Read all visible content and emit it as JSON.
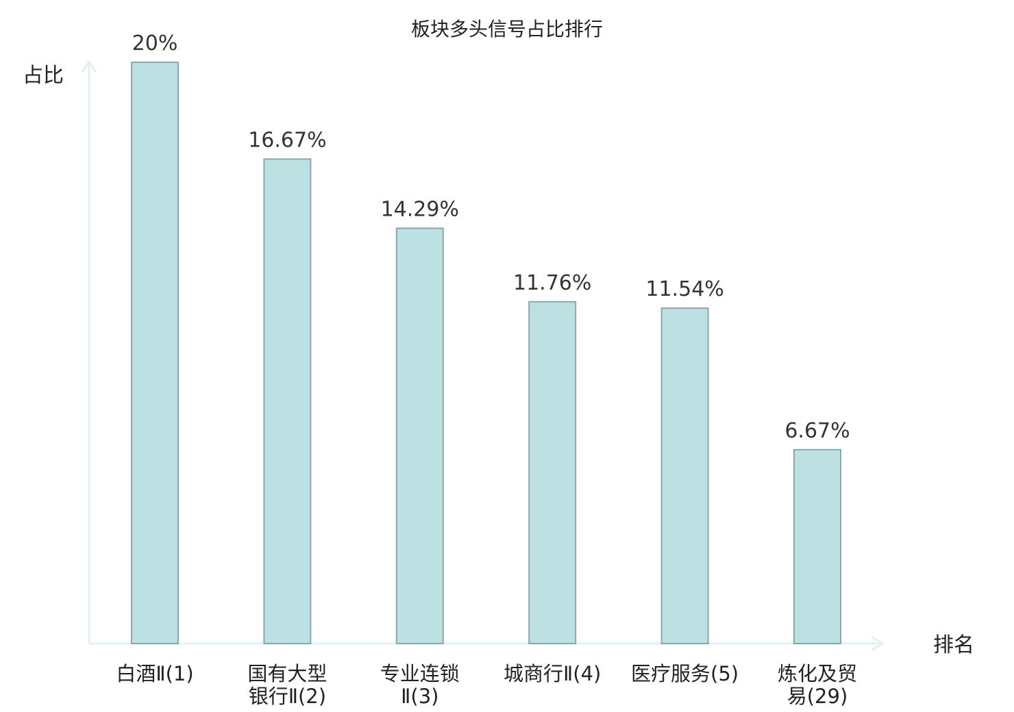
{
  "chart_data": {
    "type": "bar",
    "title": "板块多头信号占比排行",
    "ylabel": "占比",
    "xlabel": "排名",
    "ylim": [
      0,
      20
    ],
    "grid": false,
    "legend": "none",
    "categories": [
      {
        "lines": [
          "白酒Ⅱ(1)"
        ],
        "highlight": false
      },
      {
        "lines": [
          "国有大型",
          "银行Ⅱ(2)"
        ],
        "highlight": false
      },
      {
        "lines": [
          "专业连锁",
          "Ⅱ(3)"
        ],
        "highlight": false
      },
      {
        "lines": [
          "城商行Ⅱ(4)"
        ],
        "highlight": false
      },
      {
        "lines": [
          "医疗服务(5)"
        ],
        "highlight": false
      },
      {
        "lines": [
          "炼化及贸",
          "易(29)"
        ],
        "highlight": true
      }
    ],
    "values": [
      20,
      16.67,
      14.29,
      11.76,
      11.54,
      6.67
    ],
    "value_labels": [
      "20%",
      "16.67%",
      "14.29%",
      "11.76%",
      "11.54%",
      "6.67%"
    ],
    "colors": {
      "bar_fill": "#bde0e3",
      "bar_stroke": "#8aa7aa",
      "axis": "#e0f2f1",
      "text": "#222222",
      "highlight_text": "#e0141e"
    }
  }
}
